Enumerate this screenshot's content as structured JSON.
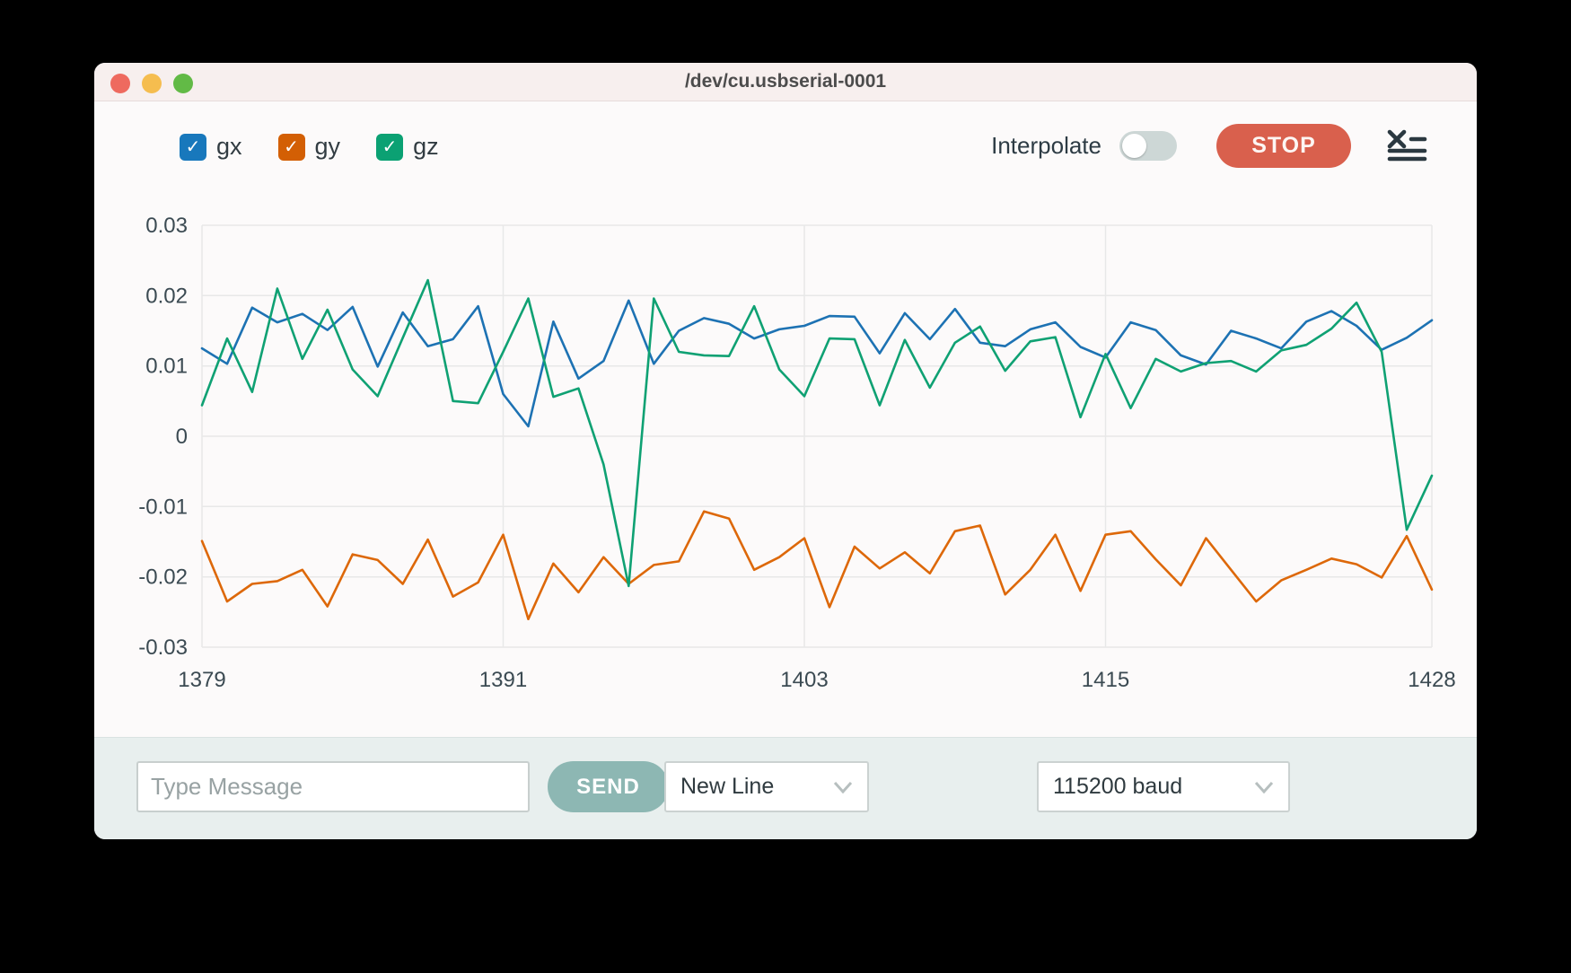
{
  "window": {
    "title": "/dev/cu.usbserial-0001"
  },
  "toolbar": {
    "interpolate_label": "Interpolate",
    "interpolate_state": "off",
    "stop_label": "STOP",
    "clear_icon": "clear-plot-list-icon"
  },
  "colors": {
    "titlebar_bg": "#f7efee",
    "stop_button": "#d9604d",
    "send_button": "#8db7b3",
    "bottom_bar_bg": "#e8efee",
    "gx": "#1d72b3",
    "gy": "#dd6809",
    "gz": "#0fa173"
  },
  "chart_data": {
    "type": "line",
    "title": "",
    "xlabel": "",
    "ylabel": "",
    "ylim": [
      -0.03,
      0.03
    ],
    "grid": true,
    "legend_position": "top-left",
    "yticks": [
      0.03,
      0.02,
      0.01,
      0,
      -0.01,
      -0.02,
      -0.03
    ],
    "xticks": [
      1379,
      1391,
      1403,
      1415,
      1428
    ],
    "x_values": [
      1379,
      1380,
      1381,
      1382,
      1383,
      1384,
      1385,
      1386,
      1387,
      1388,
      1389,
      1390,
      1391,
      1392,
      1393,
      1394,
      1395,
      1396,
      1397,
      1398,
      1399,
      1400,
      1401,
      1402,
      1403,
      1404,
      1405,
      1406,
      1407,
      1408,
      1409,
      1410,
      1411,
      1412,
      1413,
      1414,
      1415,
      1416,
      1417,
      1418,
      1419,
      1420,
      1421,
      1422,
      1423,
      1424,
      1425,
      1426,
      1427,
      1428
    ],
    "series": [
      {
        "name": "gx",
        "color": "#1d72b3",
        "checkbox_color": "#1878bc",
        "checked": true,
        "values": [
          0.0125,
          0.0103,
          0.0183,
          0.0162,
          0.0174,
          0.0151,
          0.0184,
          0.0099,
          0.0176,
          0.0128,
          0.0138,
          0.0185,
          0.006,
          0.0014,
          0.0163,
          0.0082,
          0.0107,
          0.0193,
          0.0103,
          0.015,
          0.0168,
          0.016,
          0.0139,
          0.0152,
          0.0157,
          0.0171,
          0.017,
          0.0118,
          0.0175,
          0.0138,
          0.0181,
          0.0133,
          0.0128,
          0.0152,
          0.0162,
          0.0127,
          0.0112,
          0.0162,
          0.0151,
          0.0115,
          0.0102,
          0.015,
          0.0139,
          0.0125,
          0.0163,
          0.0178,
          0.0157,
          0.0123,
          0.014,
          0.0165
        ]
      },
      {
        "name": "gy",
        "color": "#dd6809",
        "checkbox_color": "#d35f04",
        "checked": true,
        "values": [
          -0.0149,
          -0.0235,
          -0.021,
          -0.0206,
          -0.019,
          -0.0242,
          -0.0168,
          -0.0176,
          -0.021,
          -0.0147,
          -0.0228,
          -0.0208,
          -0.014,
          -0.026,
          -0.0181,
          -0.0222,
          -0.0172,
          -0.021,
          -0.0183,
          -0.0178,
          -0.0107,
          -0.0117,
          -0.019,
          -0.0172,
          -0.0145,
          -0.0243,
          -0.0157,
          -0.0188,
          -0.0165,
          -0.0195,
          -0.0135,
          -0.0127,
          -0.0225,
          -0.019,
          -0.014,
          -0.022,
          -0.014,
          -0.0135,
          -0.0175,
          -0.0212,
          -0.0145,
          -0.019,
          -0.0235,
          -0.0205,
          -0.019,
          -0.0174,
          -0.0182,
          -0.0201,
          -0.0142,
          -0.0218
        ]
      },
      {
        "name": "gz",
        "color": "#0fa173",
        "checkbox_color": "#0ba173",
        "checked": true,
        "values": [
          0.0044,
          0.0139,
          0.0063,
          0.021,
          0.011,
          0.018,
          0.0095,
          0.0057,
          0.014,
          0.0222,
          0.005,
          0.0047,
          0.012,
          0.0196,
          0.0056,
          0.0068,
          -0.004,
          -0.0213,
          0.0196,
          0.012,
          0.0115,
          0.0114,
          0.0185,
          0.0095,
          0.0057,
          0.0139,
          0.0138,
          0.0044,
          0.0137,
          0.0069,
          0.0133,
          0.0156,
          0.0093,
          0.0135,
          0.0141,
          0.0027,
          0.0117,
          0.004,
          0.011,
          0.0092,
          0.0104,
          0.0107,
          0.0092,
          0.0122,
          0.013,
          0.0153,
          0.019,
          0.012,
          -0.0133,
          -0.0056
        ]
      }
    ]
  },
  "bottom_bar": {
    "message_placeholder": "Type Message",
    "message_value": "",
    "send_label": "SEND",
    "line_ending_selected": "New Line",
    "baud_selected": "115200 baud"
  }
}
